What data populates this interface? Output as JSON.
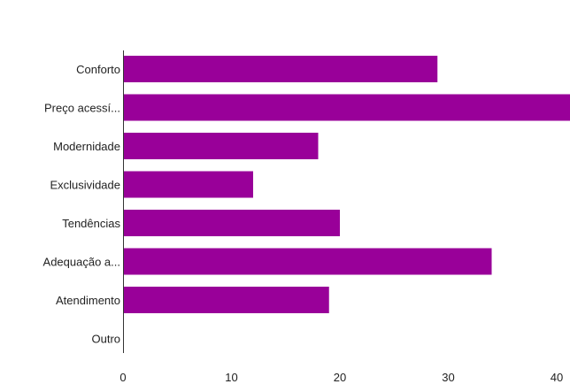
{
  "chart_data": {
    "type": "bar",
    "orientation": "horizontal",
    "categories": [
      "Conforto",
      "Preço acessí...",
      "Modernidade",
      "Exclusividade",
      "Tendências",
      "Adequação a...",
      "Atendimento",
      "Outro"
    ],
    "values": [
      29,
      42,
      18,
      12,
      20,
      34,
      19,
      0
    ],
    "xlim": [
      0,
      40
    ],
    "xticks": [
      0,
      10,
      20,
      30,
      40
    ],
    "bar_color": "#990099",
    "grid": false
  }
}
